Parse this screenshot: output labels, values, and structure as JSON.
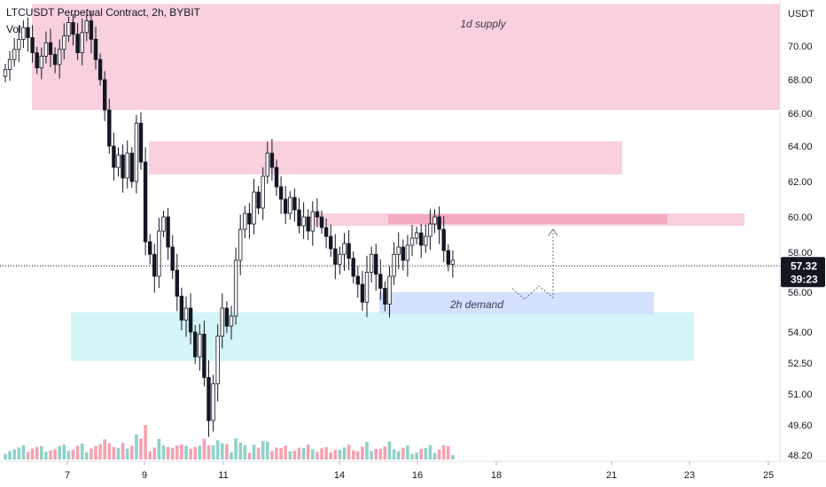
{
  "header": {
    "title": "LTCUSDT Perpetual Contract, 2h, BYBIT",
    "volume_label": "Vol"
  },
  "price_axis": {
    "currency": "USDT",
    "ticks": [
      "70.00",
      "68.00",
      "66.00",
      "64.00",
      "62.00",
      "60.00",
      "58.00",
      "56.00",
      "54.00",
      "52.50",
      "51.00",
      "49.60",
      "48.20"
    ],
    "tick_values": [
      70.0,
      68.0,
      66.0,
      64.0,
      62.0,
      60.0,
      58.0,
      56.0,
      54.0,
      52.5,
      51.0,
      49.6,
      48.2
    ]
  },
  "time_axis": {
    "ticks": [
      "7",
      "9",
      "11",
      "14",
      "16",
      "18",
      "21",
      "23",
      "25"
    ]
  },
  "current_price": {
    "price": "57.32",
    "countdown": "39:23",
    "value": 57.32
  },
  "zones": {
    "supply_1d": {
      "label": "1d supply",
      "top": 72.5,
      "bottom": 66.2,
      "color": "#f8c8d8"
    },
    "supply_2h_upper": {
      "label": "",
      "top": 64.3,
      "bottom": 62.4,
      "color": "#f8c8d8"
    },
    "supply_2h_lower": {
      "label": "",
      "top": 60.2,
      "bottom": 59.5,
      "color": "#f8c8d8"
    },
    "supply_2h_strong": {
      "label": "",
      "top": 60.15,
      "bottom": 59.6,
      "color": "#f3a6bd"
    },
    "demand_2h": {
      "label": "2h demand",
      "top": 56.0,
      "bottom": 54.9,
      "color": "#ccdcff"
    },
    "demand_big": {
      "label": "",
      "top": 55.0,
      "bottom": 52.6,
      "color": "#cdf3f6"
    }
  },
  "colors": {
    "up": "#26a69a",
    "down": "#ef5350",
    "candle": "#131722",
    "badge": "#131722"
  },
  "chart_data": {
    "type": "candlestick",
    "title": "LTCUSDT Perpetual Contract, 2h, BYBIT",
    "ylim": [
      48.2,
      72.5
    ],
    "x_ticks": [
      "7",
      "9",
      "11",
      "14",
      "16",
      "18",
      "21",
      "23",
      "25"
    ],
    "closes": [
      68.6,
      69.2,
      69.8,
      70.4,
      71.1,
      70.5,
      69.6,
      68.7,
      69.4,
      70.2,
      69.5,
      68.9,
      69.8,
      70.6,
      71.4,
      70.7,
      69.6,
      70.8,
      71.5,
      70.4,
      69.2,
      68.0,
      66.2,
      64.0,
      62.8,
      63.5,
      62.2,
      63.6,
      62.0,
      65.4,
      63.1,
      58.6,
      57.9,
      56.8,
      59.2,
      60.0,
      58.3,
      57.1,
      55.8,
      54.6,
      55.2,
      54.0,
      52.8,
      53.9,
      51.8,
      49.8,
      51.5,
      53.8,
      55.2,
      54.3,
      54.8,
      57.6,
      59.3,
      60.2,
      59.6,
      61.4,
      60.5,
      62.3,
      63.6,
      62.8,
      61.7,
      61.0,
      60.2,
      61.1,
      60.4,
      59.5,
      60.0,
      59.2,
      60.3,
      60.0,
      59.4,
      58.9,
      58.2,
      57.4,
      57.9,
      58.5,
      57.7,
      56.8,
      56.4,
      55.5,
      57.0,
      57.9,
      56.9,
      56.2,
      55.4,
      56.8,
      57.9,
      58.3,
      57.6,
      58.4,
      58.8,
      59.1,
      58.4,
      58.9,
      59.6,
      60.0,
      59.3,
      58.1,
      57.4,
      57.6
    ]
  }
}
